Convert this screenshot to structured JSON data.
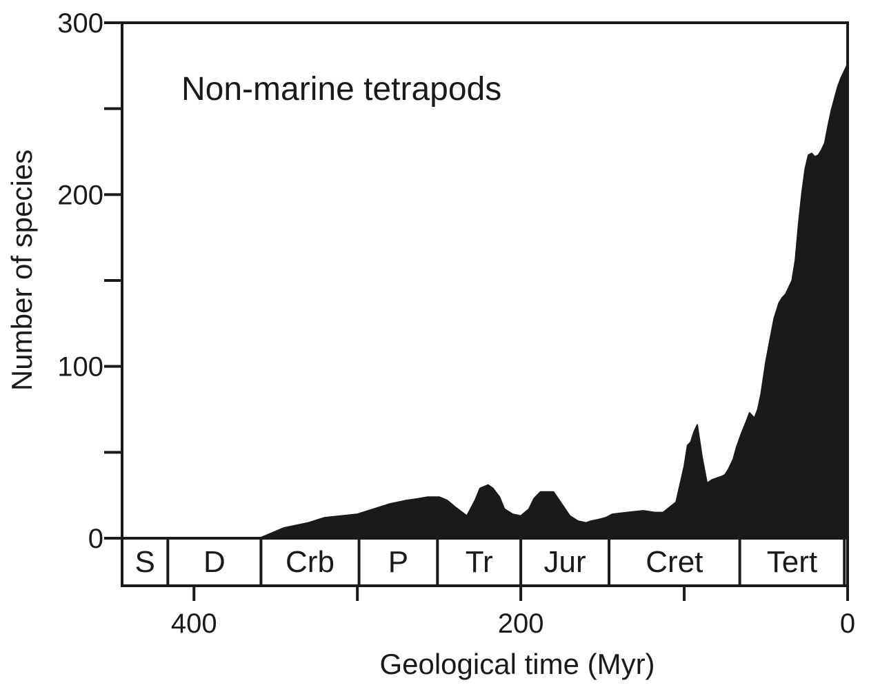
{
  "chart_data": {
    "type": "area",
    "annotation": "Non-marine tetrapods",
    "xlabel": "Geological time (Myr)",
    "ylabel": "Number of species",
    "xlim": [
      444,
      0
    ],
    "ylim": [
      0,
      300
    ],
    "x_ticks": [
      400,
      300,
      200,
      100,
      0
    ],
    "x_tick_labels": [
      "400",
      "200",
      "0"
    ],
    "x_tick_label_values": [
      400,
      200,
      0
    ],
    "y_ticks": [
      0,
      50,
      100,
      150,
      200,
      250,
      300
    ],
    "y_tick_labels": [
      "0",
      "100",
      "200",
      "300"
    ],
    "y_tick_label_values": [
      0,
      100,
      200,
      300
    ],
    "grid": false,
    "fill_color": "#1a1a1a",
    "series": [
      {
        "name": "Non-marine tetrapods",
        "x": [
          444,
          360,
          355,
          345,
          330,
          320,
          300,
          290,
          280,
          270,
          263,
          257,
          250,
          245,
          240,
          233,
          228,
          225,
          220,
          217,
          213,
          210,
          205,
          200,
          195,
          192,
          188,
          180,
          175,
          170,
          165,
          160,
          157,
          152,
          148,
          144,
          135,
          125,
          118,
          113,
          105,
          100,
          98,
          96,
          94,
          92,
          89,
          86,
          83,
          80,
          77,
          75,
          73,
          70,
          68,
          65,
          62,
          60,
          57,
          55,
          53,
          50,
          47,
          45,
          42,
          40,
          38,
          36,
          34,
          32,
          30,
          28,
          26,
          24,
          22,
          20,
          18,
          16,
          14,
          12,
          10,
          8,
          6,
          4,
          2,
          0
        ],
        "y": [
          0,
          0,
          2,
          6,
          9,
          12,
          14,
          17,
          20,
          22,
          23,
          24,
          24,
          22,
          18,
          13,
          22,
          29,
          31,
          29,
          24,
          17,
          14,
          13,
          17,
          23,
          27,
          27,
          20,
          13,
          10,
          9,
          10,
          11,
          12,
          14,
          15,
          16,
          15,
          15,
          21,
          42,
          54,
          56,
          62,
          66,
          47,
          32,
          34,
          35,
          36,
          37,
          40,
          46,
          53,
          61,
          68,
          73,
          70,
          75,
          84,
          103,
          118,
          128,
          137,
          140,
          142,
          146,
          150,
          162,
          183,
          201,
          215,
          223,
          224,
          222,
          223,
          226,
          230,
          240,
          249,
          256,
          263,
          268,
          272,
          276
        ]
      }
    ],
    "periods": [
      {
        "label": "S",
        "start": 444,
        "end": 416
      },
      {
        "label": "D",
        "start": 416,
        "end": 359
      },
      {
        "label": "Crb",
        "start": 359,
        "end": 299
      },
      {
        "label": "P",
        "start": 299,
        "end": 251
      },
      {
        "label": "Tr",
        "start": 251,
        "end": 200
      },
      {
        "label": "Jur",
        "start": 200,
        "end": 146
      },
      {
        "label": "Cret",
        "start": 146,
        "end": 66
      },
      {
        "label": "Tert",
        "start": 66,
        "end": 2
      },
      {
        "label": "",
        "start": 2,
        "end": 0
      }
    ]
  }
}
